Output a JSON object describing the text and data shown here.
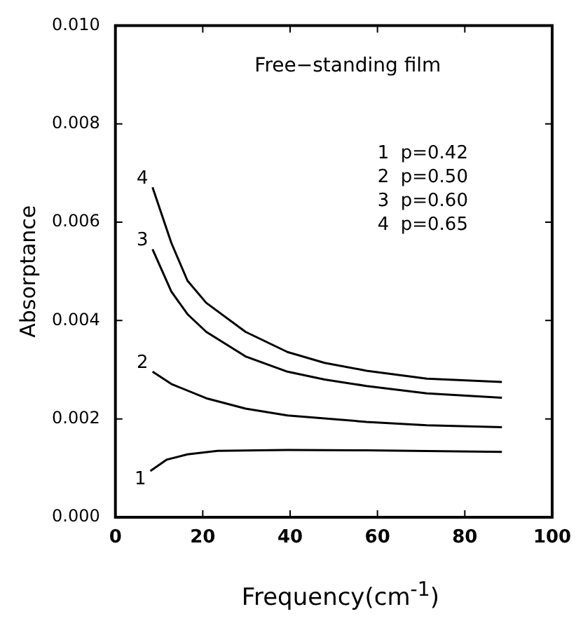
{
  "chart_data": {
    "type": "line",
    "title": "Free−standing film",
    "xlabel": "Frequency(cm$^{-1}$)",
    "ylabel": "Absorptance",
    "xlim": [
      0,
      100
    ],
    "xticks": [
      0,
      20,
      40,
      60,
      80,
      100
    ],
    "ylim": [
      0,
      0.01
    ],
    "yticks": [
      {
        "value": 0,
        "label": "0.000"
      },
      {
        "value": 0.002,
        "label": "0.002"
      },
      {
        "value": 0.004,
        "label": "0.004"
      },
      {
        "value": 0.006,
        "label": "0.006"
      },
      {
        "value": 0.008,
        "label": "0.008"
      },
      {
        "value": 0.01,
        "label": "0.010"
      }
    ],
    "grid": false,
    "legend": false,
    "marker": "none",
    "line_style": "solid",
    "annotations": [
      "1  p=0.42",
      "2  p=0.50",
      "3  p=0.60",
      "4  p=0.65"
    ],
    "series": [
      {
        "name": "1",
        "color": "#000000",
        "x": [
          8.0,
          11.7,
          16.5,
          23.4,
          39.4,
          57.5,
          88.5
        ],
        "values": [
          0.00094,
          0.00117,
          0.00128,
          0.00135,
          0.00137,
          0.00136,
          0.00133
        ]
      },
      {
        "name": "2",
        "color": "#000000",
        "x": [
          8.5,
          12.8,
          20.8,
          29.8,
          39.4,
          47.9,
          57.5,
          71.3,
          88.5
        ],
        "values": [
          0.00296,
          0.00271,
          0.00242,
          0.00221,
          0.00207,
          0.00201,
          0.00194,
          0.00187,
          0.00183
        ]
      },
      {
        "name": "3",
        "color": "#000000",
        "x": [
          8.5,
          12.8,
          16.5,
          20.8,
          29.8,
          39.4,
          47.9,
          57.5,
          71.3,
          88.5
        ],
        "values": [
          0.00545,
          0.00459,
          0.00413,
          0.00377,
          0.00327,
          0.00296,
          0.0028,
          0.00267,
          0.00252,
          0.00243
        ]
      },
      {
        "name": "4",
        "color": "#000000",
        "x": [
          8.5,
          12.8,
          16.5,
          20.8,
          29.8,
          39.4,
          47.9,
          57.5,
          71.3,
          88.5
        ],
        "values": [
          0.00671,
          0.00558,
          0.00481,
          0.00436,
          0.00377,
          0.00336,
          0.00314,
          0.00298,
          0.00282,
          0.00275
        ]
      }
    ]
  }
}
